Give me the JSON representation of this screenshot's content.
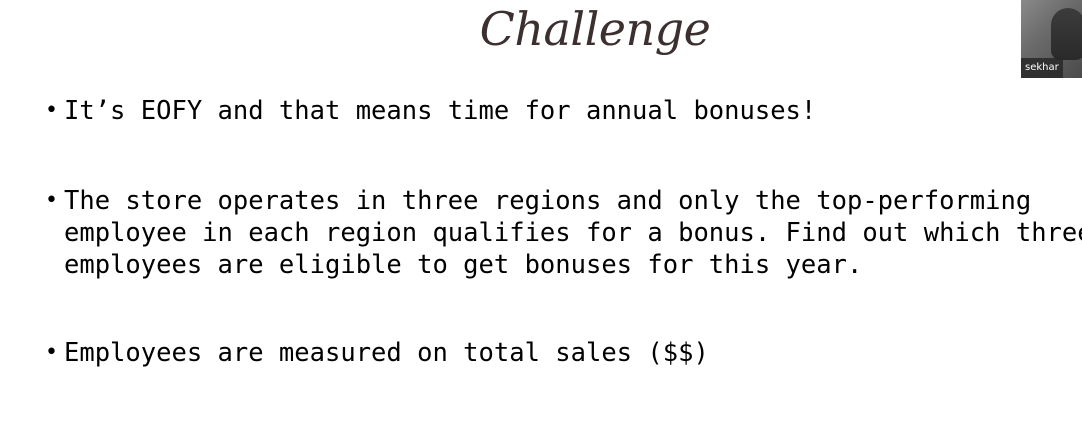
{
  "slide": {
    "title": "Challenge",
    "bullets": [
      {
        "lines": [
          "It’s EOFY and that means time for annual bonuses!"
        ]
      },
      {
        "lines": [
          "The store operates in three regions and only the top-performing",
          "employee in each region qualifies for a bonus. Find out which three",
          "employees are eligible to get bonuses for this year."
        ]
      },
      {
        "lines": [
          "Employees are measured on total sales ($$)"
        ]
      }
    ],
    "bullet_symbol": "•"
  },
  "video_tile": {
    "participant_name": "sekhar"
  }
}
